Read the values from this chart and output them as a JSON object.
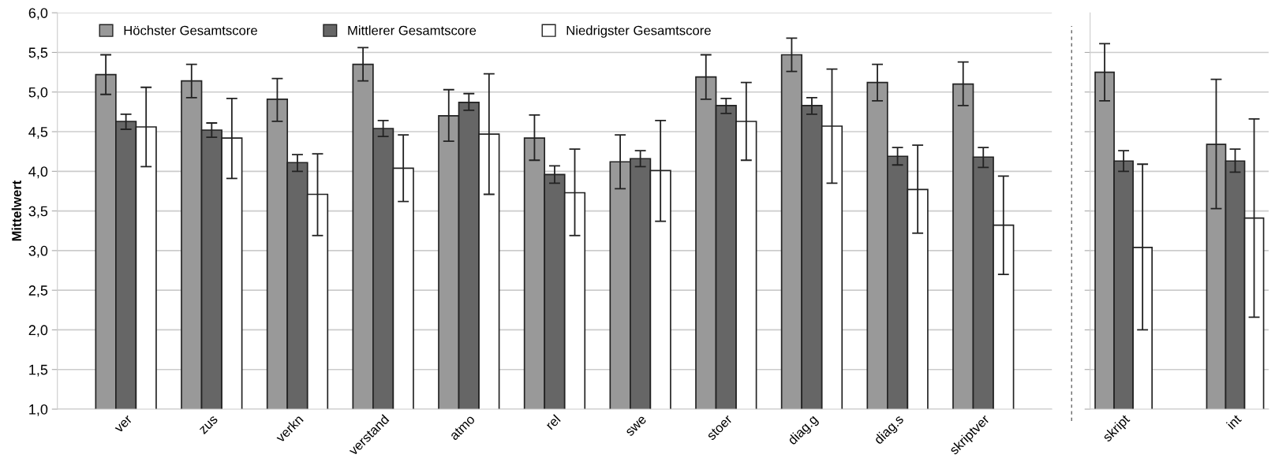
{
  "chart_data": [
    {
      "type": "bar",
      "ylabel": "Mittelwert",
      "categories": [
        "ver",
        "zus",
        "verkn",
        "verstand",
        "atmo",
        "rel",
        "swe",
        "stoer",
        "diag.g",
        "diag.s",
        "skriptver"
      ],
      "series": [
        {
          "name": "Höchster Gesamtscore",
          "color": "#999999",
          "values": [
            5.22,
            5.14,
            4.91,
            5.35,
            4.7,
            4.42,
            4.12,
            5.19,
            5.47,
            5.12,
            5.1
          ],
          "errors": [
            [
              4.97,
              5.47
            ],
            [
              4.93,
              5.35
            ],
            [
              4.63,
              5.17
            ],
            [
              5.14,
              5.56
            ],
            [
              4.38,
              5.03
            ],
            [
              4.14,
              4.71
            ],
            [
              3.78,
              4.46
            ],
            [
              4.91,
              5.47
            ],
            [
              5.26,
              5.68
            ],
            [
              4.89,
              5.35
            ],
            [
              4.83,
              5.38
            ]
          ]
        },
        {
          "name": "Mittlerer Gesamtscore",
          "color": "#666666",
          "values": [
            4.63,
            4.52,
            4.11,
            4.54,
            4.87,
            3.96,
            4.16,
            4.83,
            4.83,
            4.19,
            4.18
          ],
          "errors": [
            [
              4.53,
              4.72
            ],
            [
              4.43,
              4.61
            ],
            [
              4.0,
              4.21
            ],
            [
              4.44,
              4.64
            ],
            [
              4.77,
              4.98
            ],
            [
              3.85,
              4.07
            ],
            [
              4.06,
              4.26
            ],
            [
              4.73,
              4.92
            ],
            [
              4.72,
              4.93
            ],
            [
              4.08,
              4.3
            ],
            [
              4.05,
              4.3
            ]
          ]
        },
        {
          "name": "Niedrigster Gesamtscore",
          "color": "#ffffff",
          "values": [
            4.56,
            4.42,
            3.71,
            4.04,
            4.47,
            3.73,
            4.01,
            4.63,
            4.57,
            3.77,
            3.32
          ],
          "errors": [
            [
              4.06,
              5.06
            ],
            [
              3.91,
              4.92
            ],
            [
              3.19,
              4.22
            ],
            [
              3.62,
              4.46
            ],
            [
              3.71,
              5.23
            ],
            [
              3.19,
              4.28
            ],
            [
              3.37,
              4.64
            ],
            [
              4.14,
              5.12
            ],
            [
              3.85,
              5.29
            ],
            [
              3.22,
              4.33
            ],
            [
              2.7,
              3.94
            ]
          ]
        }
      ],
      "ylim": [
        1.0,
        6.0
      ],
      "yticks": [
        {
          "value": 1.0,
          "label": "1,0"
        },
        {
          "value": 1.5,
          "label": "1,5"
        },
        {
          "value": 2.0,
          "label": "2,0"
        },
        {
          "value": 2.5,
          "label": "2,5"
        },
        {
          "value": 3.0,
          "label": "3,0"
        },
        {
          "value": 3.5,
          "label": "3,5"
        },
        {
          "value": 4.0,
          "label": "4,0"
        },
        {
          "value": 4.5,
          "label": "4,5"
        },
        {
          "value": 5.0,
          "label": "5,0"
        },
        {
          "value": 5.5,
          "label": "5,5"
        },
        {
          "value": 6.0,
          "label": "6,0"
        }
      ],
      "grid": "y",
      "legend": "top"
    },
    {
      "type": "bar",
      "categories": [
        "skript",
        "int"
      ],
      "series": [
        {
          "color": "#999999",
          "values": [
            5.25,
            4.34
          ],
          "errors": [
            [
              4.89,
              5.61
            ],
            [
              3.53,
              5.16
            ]
          ]
        },
        {
          "color": "#666666",
          "values": [
            4.13,
            4.13
          ],
          "errors": [
            [
              4.0,
              4.26
            ],
            [
              3.99,
              4.28
            ]
          ]
        },
        {
          "color": "#ffffff",
          "values": [
            3.04,
            3.41
          ],
          "errors": [
            [
              2.0,
              4.09
            ],
            [
              2.16,
              4.66
            ]
          ]
        }
      ],
      "ylim": [
        1.0,
        6.0
      ],
      "yticks": [
        {
          "value": 1.0,
          "label": null
        },
        {
          "value": 1.5,
          "label": null
        },
        {
          "value": 2.0,
          "label": null
        },
        {
          "value": 2.5,
          "label": null
        },
        {
          "value": 3.0,
          "label": null
        },
        {
          "value": 3.5,
          "label": null
        },
        {
          "value": 4.0,
          "label": null
        },
        {
          "value": 4.5,
          "label": null
        },
        {
          "value": 5.0,
          "label": null
        },
        {
          "value": 5.5,
          "label": null
        }
      ],
      "grid": "y",
      "tick_labels": "x"
    }
  ]
}
